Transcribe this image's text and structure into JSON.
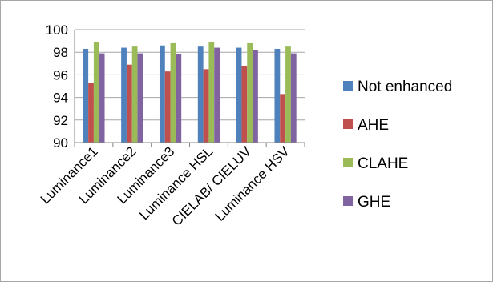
{
  "chart_data": {
    "type": "bar",
    "categories": [
      "Luminance1",
      "Luminance2",
      "Luminance3",
      "Luminance HSL",
      "CIELAB/ CIELUV",
      "Luminance HSV"
    ],
    "series": [
      {
        "name": "Not enhanced",
        "color": "#4f81bd",
        "values": [
          98.3,
          98.4,
          98.6,
          98.5,
          98.4,
          98.3
        ]
      },
      {
        "name": "AHE",
        "color": "#c0504d",
        "values": [
          95.3,
          96.9,
          96.3,
          96.5,
          96.8,
          94.3
        ]
      },
      {
        "name": "CLAHE",
        "color": "#9bbb59",
        "values": [
          98.9,
          98.5,
          98.8,
          98.9,
          98.8,
          98.5
        ]
      },
      {
        "name": "GHE",
        "color": "#8064a2",
        "values": [
          97.9,
          97.9,
          97.8,
          98.4,
          98.2,
          97.9
        ]
      }
    ],
    "ylim": [
      90,
      100
    ],
    "yticks": [
      "90",
      "92",
      "94",
      "96",
      "98",
      "100"
    ],
    "grid": true,
    "legend_position": "right",
    "title": "",
    "xlabel": "",
    "ylabel": ""
  }
}
